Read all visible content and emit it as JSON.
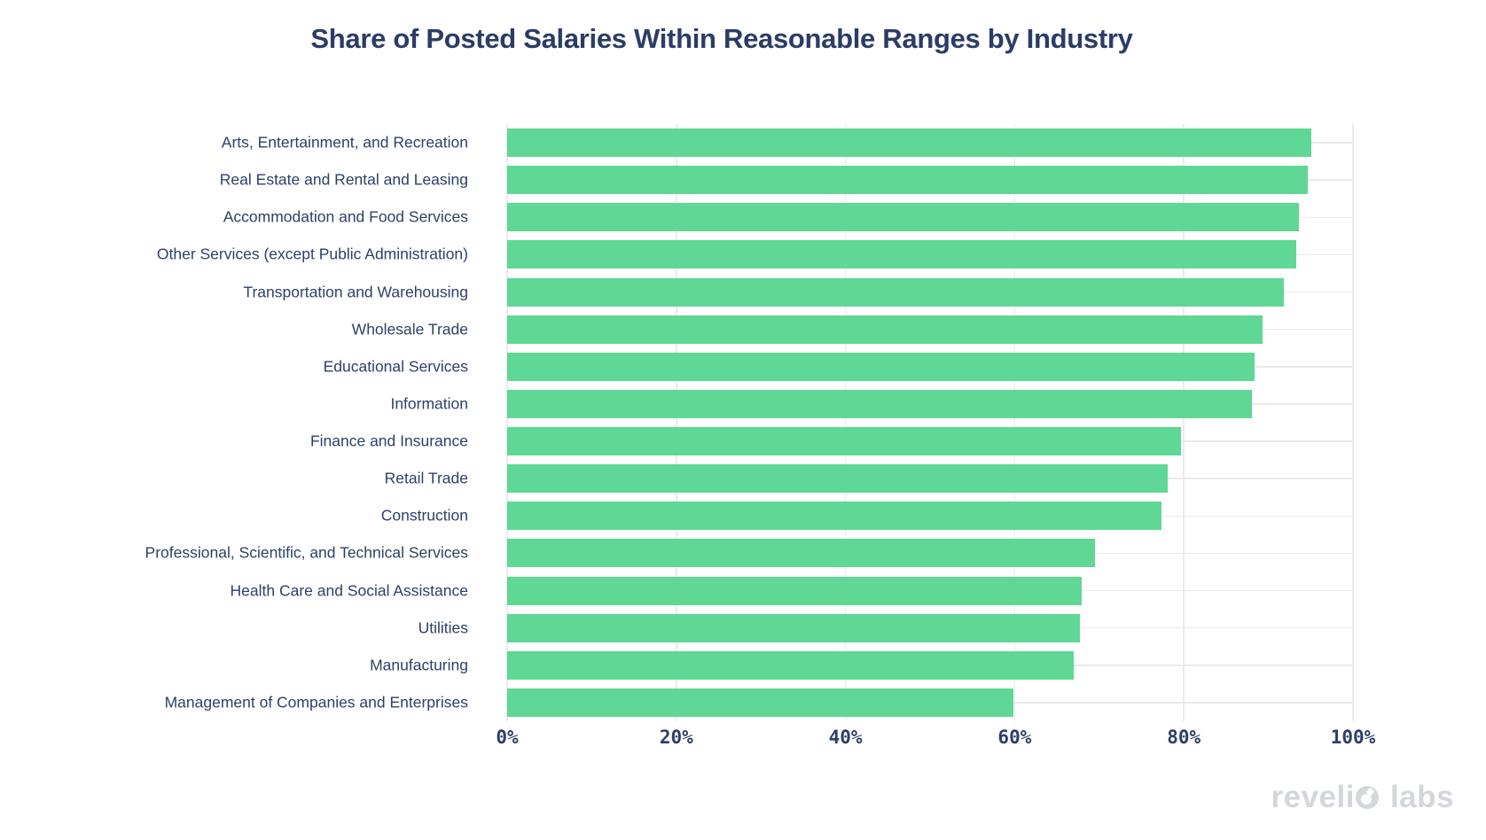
{
  "title": "Share of Posted Salaries Within Reasonable Ranges by Industry",
  "chart_data": {
    "type": "bar",
    "orientation": "horizontal",
    "title": "Share of Posted Salaries Within Reasonable Ranges by Industry",
    "categories": [
      "Arts, Entertainment, and Recreation",
      "Real Estate and Rental and Leasing",
      "Accommodation and Food Services",
      "Other Services (except Public Administration)",
      "Transportation and Warehousing",
      "Wholesale Trade",
      "Educational Services",
      "Information",
      "Finance and Insurance",
      "Retail Trade",
      "Construction",
      "Professional, Scientific, and Technical Services",
      "Health Care and Social Assistance",
      "Utilities",
      "Manufacturing",
      "Management of Companies and Enterprises"
    ],
    "values": [
      95.1,
      94.7,
      93.6,
      93.3,
      91.8,
      89.3,
      88.4,
      88.0,
      79.7,
      78.1,
      77.4,
      69.5,
      67.9,
      67.7,
      67.0,
      59.9
    ],
    "x_ticks": [
      "0%",
      "20%",
      "40%",
      "60%",
      "80%",
      "100%"
    ],
    "xlim": [
      0,
      100
    ],
    "xlabel": "",
    "ylabel": "",
    "legend": false,
    "grid": true,
    "colors": {
      "bar": "#5ed894",
      "gridline": "#e8eaf0",
      "text": "#2e4169",
      "title_text": "#2b3c66",
      "background": "#ffffff",
      "logo": "#d3d6db"
    }
  },
  "footer": {
    "logo": {
      "full_text": "revelio labs",
      "word1": "reveli",
      "word2": "labs"
    }
  }
}
